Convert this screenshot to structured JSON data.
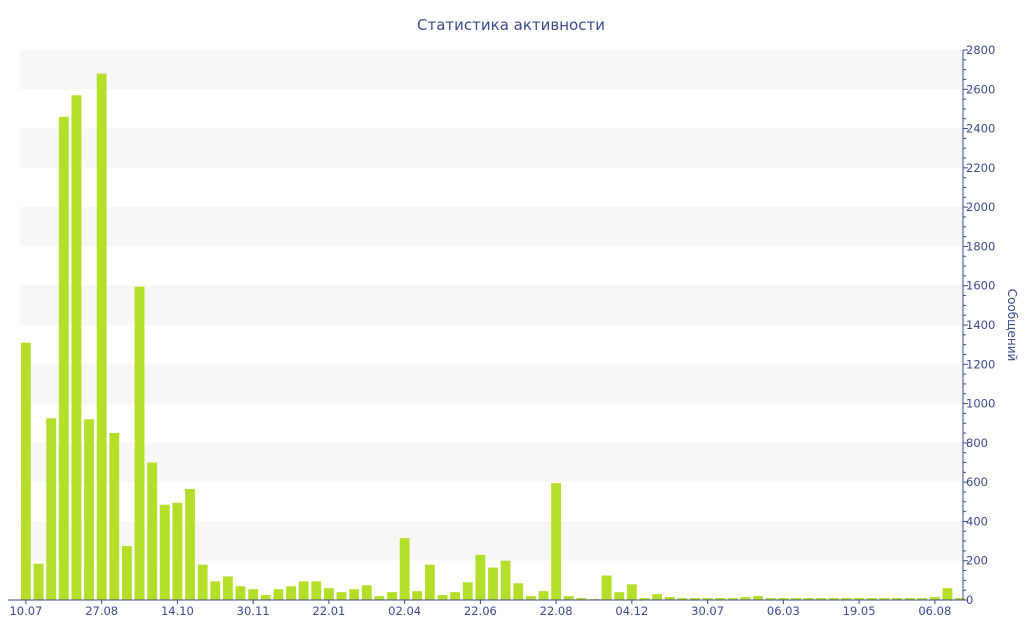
{
  "chart_data": {
    "type": "bar",
    "title": "Статистика активности",
    "ylabel": "Сообщений",
    "y_axis_side": "right",
    "ylim": [
      0,
      2800
    ],
    "yticks": [
      0,
      200,
      400,
      600,
      800,
      1000,
      1200,
      1400,
      1600,
      1800,
      2000,
      2200,
      2400,
      2600,
      2800
    ],
    "x_tick_labels": [
      {
        "index": 0,
        "label": "10.07"
      },
      {
        "index": 6,
        "label": "27.08"
      },
      {
        "index": 12,
        "label": "14.10"
      },
      {
        "index": 18,
        "label": "30.11"
      },
      {
        "index": 24,
        "label": "22.01"
      },
      {
        "index": 30,
        "label": "02.04"
      },
      {
        "index": 36,
        "label": "22.06"
      },
      {
        "index": 42,
        "label": "22.08"
      },
      {
        "index": 48,
        "label": "04.12"
      },
      {
        "index": 54,
        "label": "30.07"
      },
      {
        "index": 60,
        "label": "06.03"
      },
      {
        "index": 66,
        "label": "19.05"
      },
      {
        "index": 72,
        "label": "06.08"
      }
    ],
    "grid": "alternating-bands",
    "bar_color": "#b5de2a",
    "values": [
      1310,
      185,
      925,
      2460,
      2570,
      920,
      2680,
      850,
      275,
      1595,
      700,
      485,
      495,
      565,
      180,
      95,
      120,
      70,
      55,
      25,
      55,
      70,
      95,
      95,
      60,
      40,
      55,
      75,
      20,
      40,
      315,
      45,
      180,
      25,
      40,
      90,
      230,
      165,
      200,
      85,
      20,
      45,
      595,
      20,
      10,
      5,
      125,
      40,
      80,
      10,
      30,
      15,
      10,
      10,
      10,
      10,
      10,
      15,
      20,
      10,
      10,
      10,
      10,
      10,
      10,
      10,
      10,
      10,
      10,
      10,
      10,
      10,
      15,
      60,
      10
    ]
  }
}
